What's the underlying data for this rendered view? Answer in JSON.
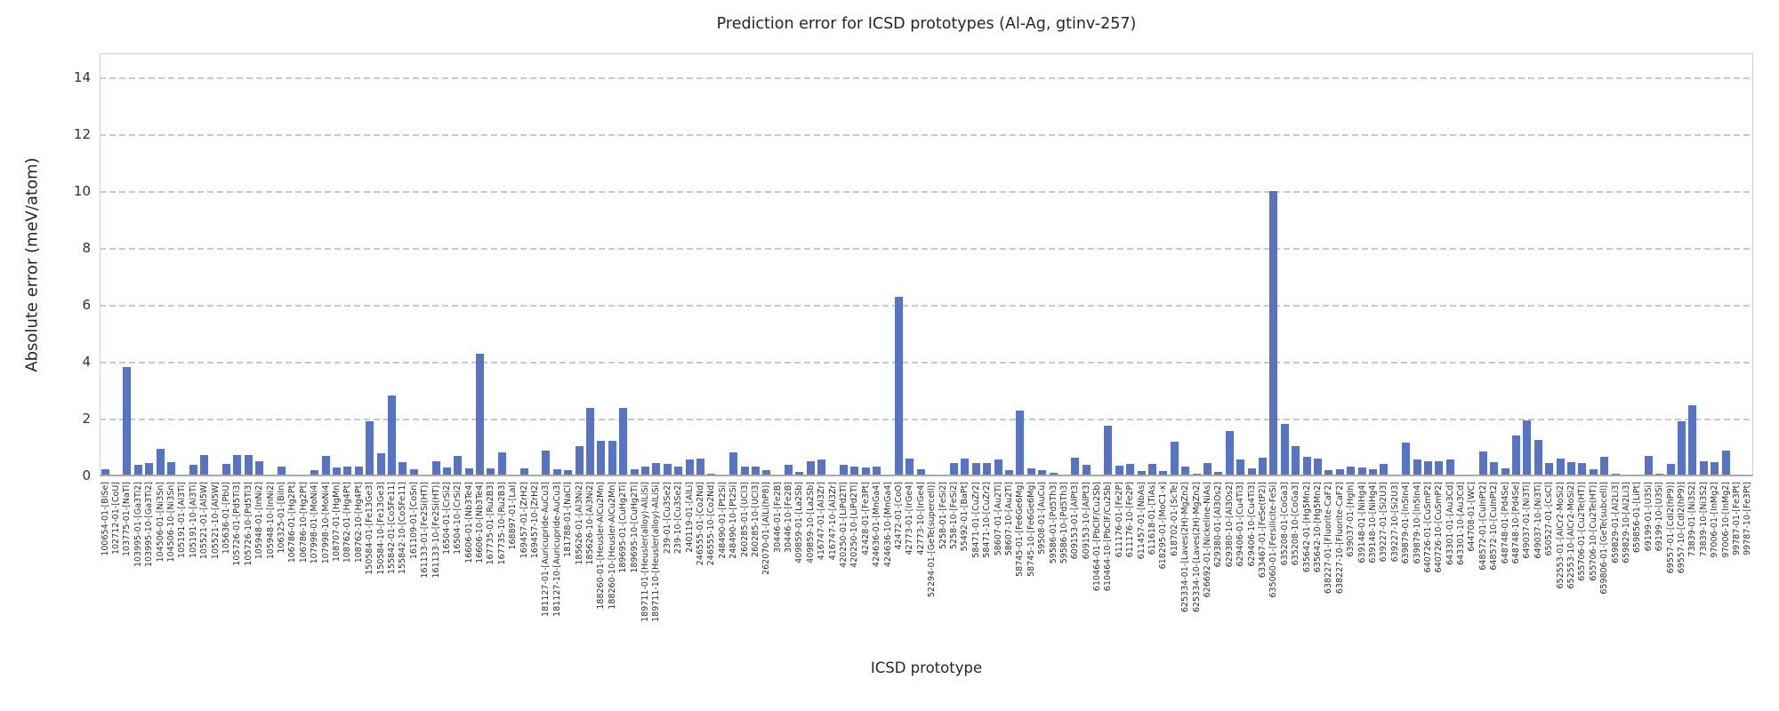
{
  "chart_data": {
    "type": "bar",
    "title": "Prediction error for ICSD prototypes (Al-Ag, gtinv-257)",
    "xlabel": "ICSD prototype",
    "ylabel": "Absolute error (meV/atom)",
    "ylim": [
      0,
      14.875
    ],
    "yticks": [
      0,
      2,
      4,
      6,
      8,
      10,
      12,
      14
    ],
    "grid": "horizontal-dashed",
    "legend": "none",
    "bar_color": "#5673c8",
    "grid_color": "#c9c9c9",
    "text_color": "#262626",
    "categories": [
      "100654-01-[BiSe]",
      "102712-01-[CoU]",
      "103775-01-[NaTl]",
      "103995-01-[Ga3Ti2]",
      "103995-10-[Ga3Ti2]",
      "104506-01-[Ni3Sn]",
      "104506-10-[Ni3Sn]",
      "105191-01-[Al3Ti]",
      "105191-10-[Al3Ti]",
      "105521-01-[Al5W]",
      "105521-10-[Al5W]",
      "105636-01-[PbU]",
      "105726-01-[Pd5Ti3]",
      "105726-10-[Pd5Ti3]",
      "105948-01-[InNi2]",
      "105948-10-[InNi2]",
      "106325-01-[BiIn]",
      "106786-01-[Hg2Pt]",
      "106786-10-[Hg2Pt]",
      "107998-01-[MoNi4]",
      "107998-10-[MoNi4]",
      "108707-01-[HgMn]",
      "108762-01-[Hg4Pt]",
      "108762-10-[Hg4Pt]",
      "150584-01-[Fe13Ge3]",
      "150584-10-[Fe13Ge3]",
      "155842-01-[Co5Fe11]",
      "155842-10-[Co5Fe11]",
      "161109-01-[CoSn]",
      "161133-01-[Fe2Si(HT)]",
      "161133-10-[Fe2Si(HT)]",
      "16504-01-[CrSi2]",
      "16504-10-[CrSi2]",
      "16606-01-[Nb3Te4]",
      "16606-10-[Nb3Te4]",
      "167735-01-[Ru2B3]",
      "167735-10-[Ru2B3]",
      "168897-01-[LaI]",
      "169457-01-[ZrH2]",
      "169457-10-[ZrH2]",
      "181127-01-[Auricupride-AuCu3]",
      "181127-10-[Auricupride-AuCu3]",
      "181788-01-[NaCl]",
      "185626-01-[Al3Ni2]",
      "185626-10-[Al3Ni2]",
      "188260-01-[Heusler-AlCu2Mn]",
      "188260-10-[Heusler-AlCu2Mn]",
      "189695-01-[CuHg2Ti]",
      "189695-10-[CuHg2Ti]",
      "189711-01-[Heusler(alloy)-AlLiSi]",
      "189711-10-[Heusler(alloy)-AlLiSi]",
      "239-01-[Cu3Se2]",
      "239-10-[Cu3Se2]",
      "240119-01-[AlLi]",
      "246555-01-[Co2Nd]",
      "246555-10-[Co2Nd]",
      "248490-01-[Pt2Si]",
      "248490-10-[Pt2Si]",
      "260285-01-[UCl3]",
      "260285-10-[UCl3]",
      "262070-01-[AlLi(hP8)]",
      "30446-01-[Fe2B]",
      "30446-10-[Fe2B]",
      "409859-01-[La2Sb]",
      "409859-10-[La2Sb]",
      "416747-01-[Al3Zr]",
      "416747-10-[Al3Zr]",
      "420250-01-[LiPd2Tl]",
      "420250-10-[LiPd2Tl]",
      "42428-01-[Fe3Pt]",
      "424636-01-[MnGa4]",
      "424636-10-[MnGa4]",
      "42472-01-[CoO]",
      "42773-01-[IrGe4]",
      "42773-10-[IrGe4]",
      "52294-01-[GeTe(supercell)]",
      "5258-01-[FeSi2]",
      "5258-10-[FeSi2]",
      "55492-01-[BaPt]",
      "58471-01-[CuZr2]",
      "58471-10-[CuZr2]",
      "58607-01-[Au2Ti]",
      "58607-10-[Au2Ti]",
      "58745-01-[Fe6Ge6Mg]",
      "58745-10-[Fe6Ge6Mg]",
      "59508-01-[AuCu]",
      "59586-01-[Pd5Th3]",
      "59586-10-[Pd5Th3]",
      "609153-01-[AlPt3]",
      "609153-10-[AlPt3]",
      "610464-01-[PbClF/Cu2Sb]",
      "610464-10-[PbClF/Cu2Sb]",
      "611176-01-[Fe2P]",
      "611176-10-[Fe2P]",
      "611457-01-[NbAs]",
      "611618-01-[TiAs]",
      "618295-01-[MoC1-x]",
      "618702-01-[ScTe]",
      "625334-01-[Laves(2H)-MgZn2]",
      "625334-10-[Laves(2H)-MgZn2]",
      "626692-01-[Nickeline-NiAs]",
      "629380-01-[Al3Os2]",
      "629380-10-[Al3Os2]",
      "629406-01-[Cu4Ti3]",
      "629406-10-[Cu4Ti3]",
      "633467-01-[FeSe(tP2)]",
      "635060-01-[Fersilicite-FeSi]",
      "635208-01-[CoGa3]",
      "635208-10-[CoGa3]",
      "635642-01-[Hg5Mn2]",
      "635642-10-[Hg5Mn2]",
      "638227-01-[Fluorite-CaF2]",
      "638227-10-[Fluorite-CaF2]",
      "639037-01-[HgIn]",
      "639148-01-[NiHg4]",
      "639148-10-[NiHg4]",
      "639227-01-[Si2U3]",
      "639227-10-[Si2U3]",
      "639879-01-[In5In4]",
      "639879-10-[In5In4]",
      "640726-01-[CuSmP2]",
      "640726-10-[CuSmP2]",
      "643301-01-[Au3Cd]",
      "643301-10-[Au3Cd]",
      "644708-01-[WC]",
      "648572-01-[CuInPt2]",
      "648572-10-[CuInPt2]",
      "648748-01-[Pd4Se]",
      "648748-10-[Pd4Se]",
      "649037-01-[Ni3Ti]",
      "649037-10-[Ni3Ti]",
      "650527-01-[CsCl]",
      "652553-01-[AlCr2-MoSi2]",
      "652553-10-[AlCr2-MoSi2]",
      "655706-01-[Cu2Te(HT)]",
      "655706-10-[Cu2Te(HT)]",
      "659806-01-[GeTe(subcell)]",
      "659829-01-[Al2Li3]",
      "659829-10-[Al2Li3]",
      "659856-01-[LiPt]",
      "69199-01-[U3Si]",
      "69199-10-[U3Si]",
      "69557-01-[CdI2(hP9)]",
      "69557-10-[CdI2(hP9)]",
      "73839-01-[Ni3S2]",
      "73839-10-[Ni3S2]",
      "97006-01-[InMg2]",
      "97006-10-[InMg2]",
      "99787-01-[Fe3Pt]",
      "99787-10-[Fe3Pt]"
    ],
    "values": [
      0.26,
      0.02,
      3.83,
      0.4,
      0.47,
      0.97,
      0.49,
      0.02,
      0.4,
      0.75,
      0.02,
      0.44,
      0.76,
      0.74,
      0.53,
      0.04,
      0.33,
      0.02,
      0.03,
      0.23,
      0.71,
      0.3,
      0.34,
      0.34,
      1.94,
      0.81,
      2.84,
      0.5,
      0.24,
      0.02,
      0.52,
      0.32,
      0.71,
      0.28,
      4.32,
      0.28,
      0.85,
      0.06,
      0.28,
      0.02,
      0.92,
      0.26,
      0.21,
      1.07,
      2.4,
      1.26,
      1.26,
      2.42,
      0.26,
      0.36,
      0.48,
      0.45,
      0.36,
      0.59,
      0.64,
      0.09,
      0.02,
      0.84,
      0.34,
      0.34,
      0.22,
      0.02,
      0.4,
      0.16,
      0.52,
      0.6,
      0.02,
      0.4,
      0.34,
      0.32,
      0.34,
      0.05,
      6.32,
      0.62,
      0.26,
      0.02,
      0.02,
      0.47,
      0.64,
      0.47,
      0.47,
      0.6,
      0.22,
      2.3,
      0.29,
      0.21,
      0.14,
      0.02,
      0.66,
      0.4,
      0.02,
      1.78,
      0.39,
      0.43,
      0.2,
      0.45,
      0.19,
      1.21,
      0.34,
      0.11,
      0.48,
      0.17,
      1.58,
      0.58,
      0.28,
      0.66,
      10.02,
      1.85,
      1.05,
      0.68,
      0.64,
      0.22,
      0.24,
      0.34,
      0.32,
      0.26,
      0.44,
      0.02,
      1.18,
      0.58,
      0.52,
      0.54,
      0.58,
      0.02,
      0.02,
      0.89,
      0.5,
      0.29,
      1.44,
      1.96,
      1.28,
      0.46,
      0.63,
      0.5,
      0.48,
      0.26,
      0.7,
      0.11,
      0.03,
      0.02,
      0.71,
      0.1,
      0.43,
      1.94,
      2.5,
      0.52,
      0.49,
      0.91,
      0.03,
      0.03
    ]
  }
}
